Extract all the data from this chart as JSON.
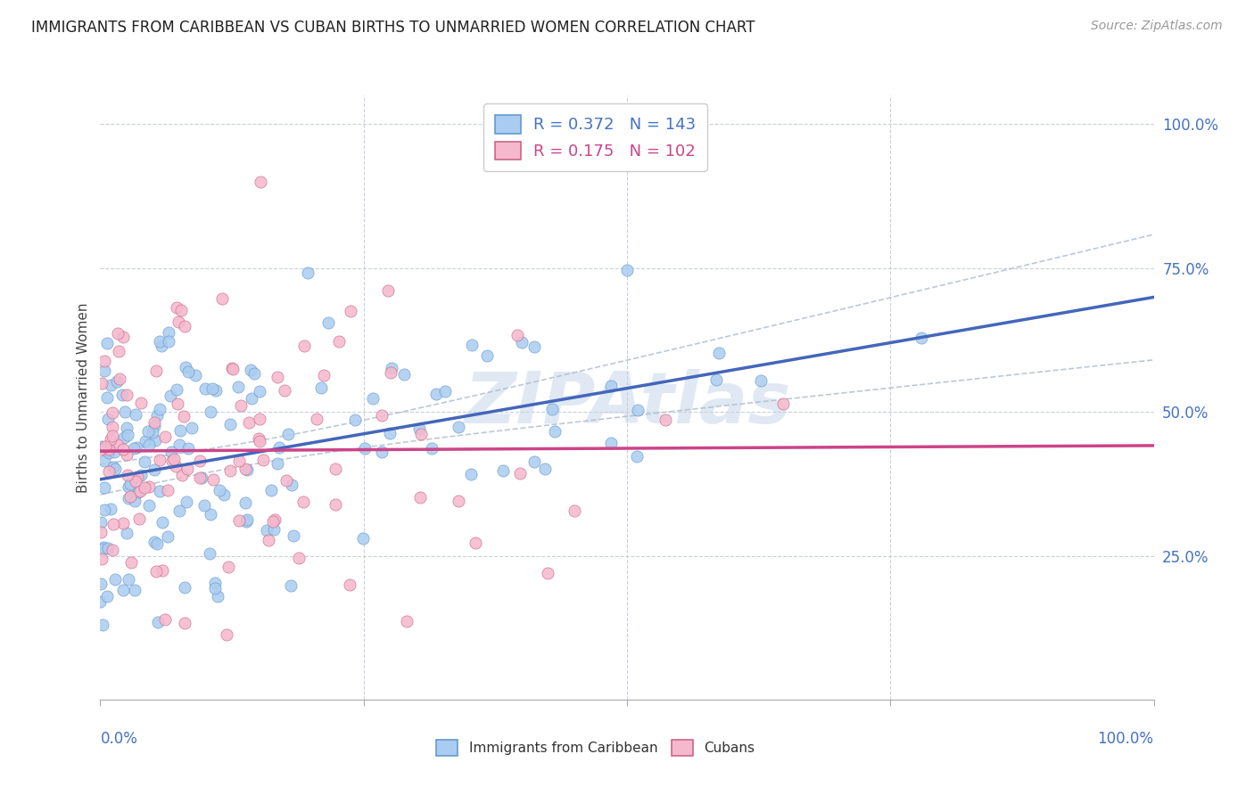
{
  "title": "IMMIGRANTS FROM CARIBBEAN VS CUBAN BIRTHS TO UNMARRIED WOMEN CORRELATION CHART",
  "source": "Source: ZipAtlas.com",
  "ylabel": "Births to Unmarried Women",
  "R_caribbean": 0.372,
  "N_caribbean": 143,
  "R_cuban": 0.175,
  "N_cuban": 102,
  "color_caribbean_fill": "#aaccf0",
  "color_caribbean_edge": "#6699cc",
  "color_cuban_fill": "#f5b8cc",
  "color_cuban_edge": "#cc6688",
  "color_trendline_caribbean": "#4466bb",
  "color_trendline_cuban": "#cc4488",
  "color_axis_blue": "#4472c4",
  "color_watermark": "#ddeeff",
  "background_color": "#ffffff",
  "title_fontsize": 12,
  "source_fontsize": 10,
  "axis_fontsize": 12,
  "legend_fontsize": 13,
  "seed": 7,
  "xmin": 0.0,
  "xmax": 1.0,
  "ymin": 0.0,
  "ymax": 1.05,
  "trend_car_x0": 0.37,
  "trend_car_x1": 0.65,
  "trend_cub_x0": 0.42,
  "trend_cub_x1": 0.55
}
